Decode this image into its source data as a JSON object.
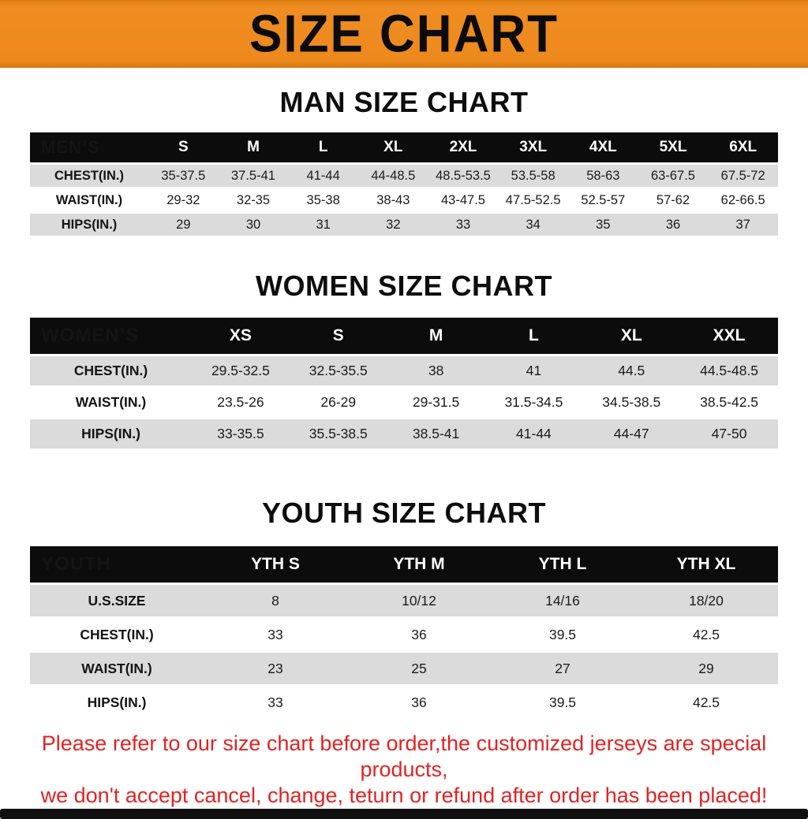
{
  "banner": {
    "title": "SIZE CHART",
    "bg_color": "#ED891D"
  },
  "sections": [
    {
      "heading": "MAN SIZE CHART",
      "table": {
        "header": [
          "MEN’S",
          "S",
          "M",
          "L",
          "XL",
          "2XL",
          "3XL",
          "4XL",
          "5XL",
          "6XL"
        ],
        "rows": [
          [
            "CHEST(IN.)",
            "35-37.5",
            "37.5-41",
            "41-44",
            "44-48.5",
            "48.5-53.5",
            "53.5-58",
            "58-63",
            "63-67.5",
            "67.5-72"
          ],
          [
            "WAIST(IN.)",
            "29-32",
            "32-35",
            "35-38",
            "38-43",
            "43-47.5",
            "47.5-52.5",
            "52.5-57",
            "57-62",
            "62-66.5"
          ],
          [
            "HIPS(IN.)",
            "29",
            "30",
            "31",
            "32",
            "33",
            "34",
            "35",
            "36",
            "37"
          ]
        ]
      }
    },
    {
      "heading": "WOMEN SIZE CHART",
      "table": {
        "header": [
          "WOMEN’S",
          "XS",
          "S",
          "M",
          "L",
          "XL",
          "XXL"
        ],
        "rows": [
          [
            "CHEST(IN.)",
            "29.5-32.5",
            "32.5-35.5",
            "38",
            "41",
            "44.5",
            "44.5-48.5"
          ],
          [
            "WAIST(IN.)",
            "23.5-26",
            "26-29",
            "29-31.5",
            "31.5-34.5",
            "34.5-38.5",
            "38.5-42.5"
          ],
          [
            "HIPS(IN.)",
            "33-35.5",
            "35.5-38.5",
            "38.5-41",
            "41-44",
            "44-47",
            "47-50"
          ]
        ]
      }
    },
    {
      "heading": "YOUTH SIZE CHART",
      "table": {
        "header": [
          "YOUTH",
          "YTH S",
          "YTH M",
          "YTH L",
          "YTH XL"
        ],
        "rows": [
          [
            "U.S.SIZE",
            "8",
            "10/12",
            "14/16",
            "18/20"
          ],
          [
            "CHEST(IN.)",
            "33",
            "36",
            "39.5",
            "42.5"
          ],
          [
            "WAIST(IN.)",
            "23",
            "25",
            "27",
            "29"
          ],
          [
            "HIPS(IN.)",
            "33",
            "36",
            "39.5",
            "42.5"
          ]
        ]
      }
    }
  ],
  "footer": {
    "line1": "Please refer to our size chart before order,the customized jerseys are special products,",
    "line2": "we don't accept cancel, change, teturn or refund after order has been placed!",
    "text_color": "#E32222"
  },
  "colors": {
    "banner_orange": "#ED891D",
    "header_black": "#0C0C0C",
    "row_gray": "#DBDBDB",
    "disclaimer_red": "#E32222"
  }
}
